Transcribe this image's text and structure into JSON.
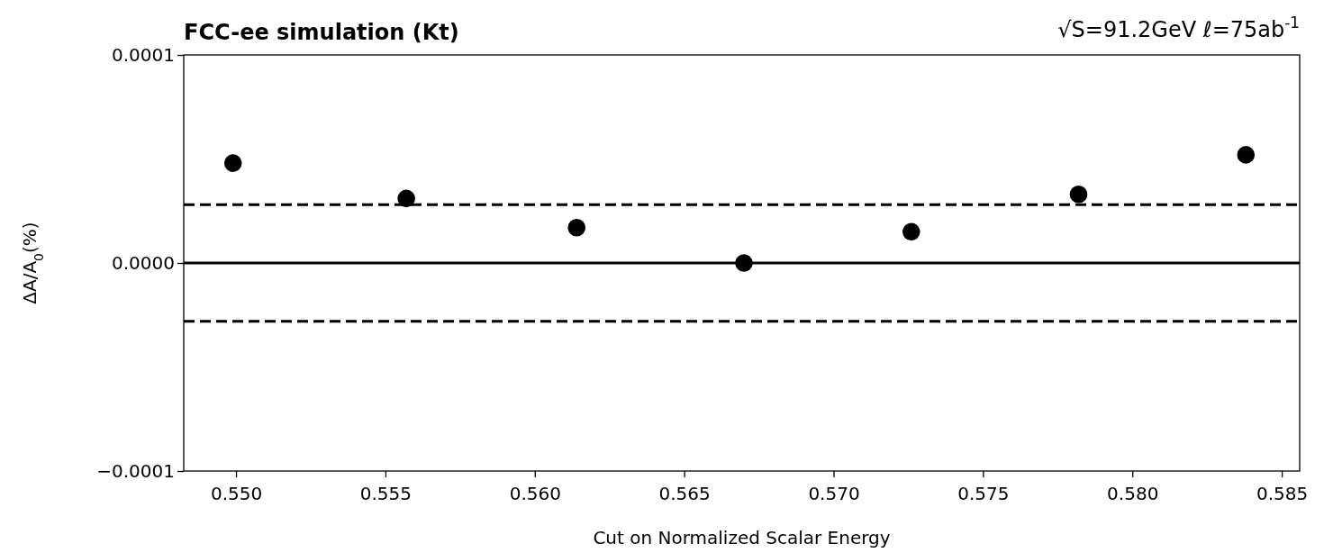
{
  "chart_data": {
    "type": "scatter",
    "title": "FCC-ee simulation (Kt)",
    "subtitle": "√S=91.2GeV  ℓ=75ab$^{-1}$",
    "xlabel": "Cut on Normalized Scalar Energy",
    "ylabel": "ΔA/A$_{0}$(%)",
    "x": [
      0.5499,
      0.5557,
      0.5614,
      0.567,
      0.5726,
      0.5782,
      0.5838
    ],
    "series": [
      {
        "color": "#000000",
        "values": [
          4.8e-05,
          3.1e-05,
          1.7e-05,
          0.0,
          1.5e-05,
          3.3e-05,
          5.2e-05
        ]
      }
    ],
    "marker": "circle",
    "xlim": [
      0.54825,
      0.5856
    ],
    "ylim": [
      -0.0001,
      0.0001
    ],
    "xticks": [
      {
        "value": 0.55,
        "label": "0.550"
      },
      {
        "value": 0.555,
        "label": "0.555"
      },
      {
        "value": 0.56,
        "label": "0.560"
      },
      {
        "value": 0.565,
        "label": "0.565"
      },
      {
        "value": 0.57,
        "label": "0.570"
      },
      {
        "value": 0.575,
        "label": "0.575"
      },
      {
        "value": 0.58,
        "label": "0.580"
      },
      {
        "value": 0.585,
        "label": "0.585"
      }
    ],
    "yticks": [
      {
        "value": -0.0001,
        "label": "−0.0001"
      },
      {
        "value": 0,
        "label": "0.0000"
      },
      {
        "value": 0.0001,
        "label": "0.0001"
      }
    ],
    "ref_lines": [
      {
        "axis": "y",
        "value": 0,
        "line_style": "solid",
        "color": "#000000"
      },
      {
        "axis": "y",
        "value": 2.8e-05,
        "line_style": "dashed",
        "color": "#000000"
      },
      {
        "axis": "y",
        "value": -2.8e-05,
        "line_style": "dashed",
        "color": "#000000"
      }
    ]
  }
}
